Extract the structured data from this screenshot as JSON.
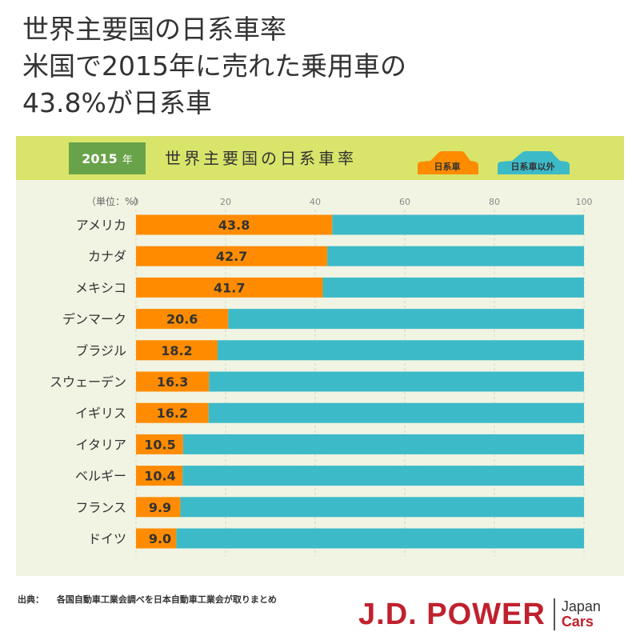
{
  "headline": {
    "line1": "世界主要国の日系車率",
    "line2": "米国で2015年に売れた乗用車の",
    "line3": "43.8%が日系車"
  },
  "header": {
    "year": "2015",
    "year_unit": "年",
    "title": "世界主要国の日系車率",
    "legend_japanese": "日系車",
    "legend_other": "日系車以外"
  },
  "colors": {
    "japanese": "#ff8c00",
    "other": "#3dbac8",
    "header_bg": "#d9e46b",
    "badge_bg": "#69a349",
    "panel_bg": "#f1f4e3"
  },
  "chart_data": {
    "type": "bar",
    "orientation": "horizontal",
    "stacked": true,
    "unit_label": "（単位：%）",
    "xlim": [
      0,
      100
    ],
    "x_ticks": [
      0,
      20,
      40,
      60,
      80,
      100
    ],
    "categories": [
      "アメリカ",
      "カナダ",
      "メキシコ",
      "デンマーク",
      "ブラジル",
      "スウェーデン",
      "イギリス",
      "イタリア",
      "ベルギー",
      "フランス",
      "ドイツ"
    ],
    "series": [
      {
        "name": "日系車",
        "values": [
          43.8,
          42.7,
          41.7,
          20.6,
          18.2,
          16.3,
          16.2,
          10.5,
          10.4,
          9.9,
          9.0
        ]
      },
      {
        "name": "日系車以外",
        "values": [
          56.2,
          57.3,
          58.3,
          79.4,
          81.8,
          83.7,
          83.8,
          89.5,
          89.6,
          90.1,
          91.0
        ]
      }
    ],
    "value_labels": [
      "43.8",
      "42.7",
      "41.7",
      "20.6",
      "18.2",
      "16.3",
      "16.2",
      "10.5",
      "10.4",
      "9.9",
      "9.0"
    ]
  },
  "footer": {
    "source_label": "出典：",
    "source_text": "各国自動車工業会調べを日本自動車工業会が取りまとめ",
    "brand_main": "J.D. POWER",
    "brand_sub1": "Japan",
    "brand_sub2": "Cars"
  }
}
